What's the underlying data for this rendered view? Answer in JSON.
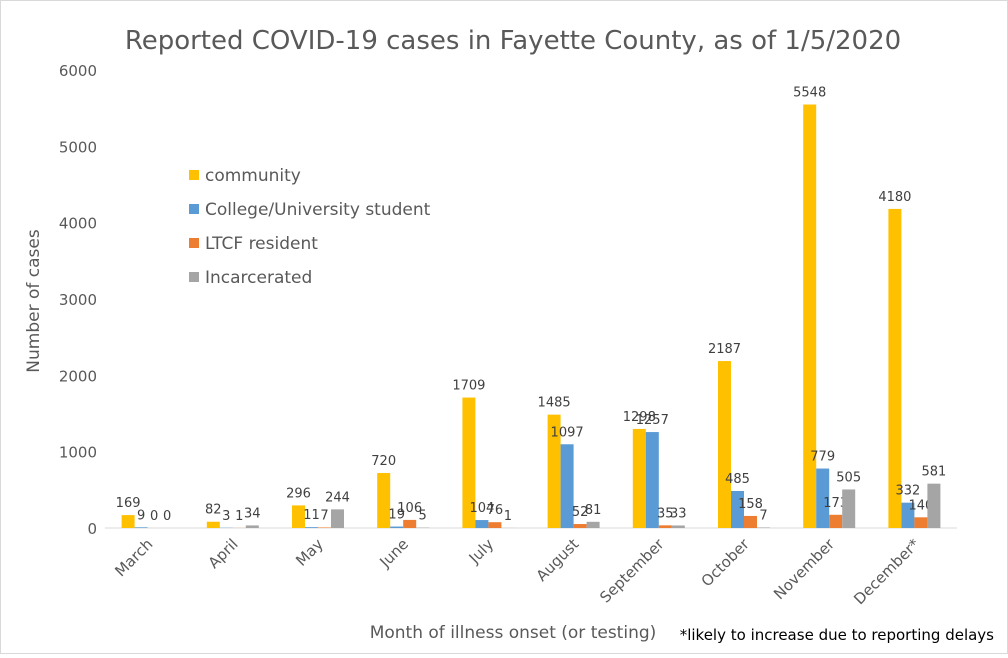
{
  "chart_data": {
    "type": "bar",
    "title": "Reported COVID-19 cases in Fayette County, as of 1/5/2020",
    "xlabel": "Month of illness onset (or testing)",
    "ylabel": "Number of cases",
    "footnote": "*likely  to increase due to reporting delays",
    "ylim": [
      0,
      6000
    ],
    "yticks": [
      0,
      1000,
      2000,
      3000,
      4000,
      5000,
      6000
    ],
    "grid": false,
    "legend_position": "top-left",
    "categories": [
      "March",
      "April",
      "May",
      "June",
      "July",
      "August",
      "September",
      "October",
      "November",
      "December*"
    ],
    "series": [
      {
        "name": "community",
        "color": "#FFC000",
        "values": [
          169,
          82,
          296,
          720,
          1709,
          1485,
          1298,
          2187,
          5548,
          4180
        ]
      },
      {
        "name": "College/University student",
        "color": "#5B9BD5",
        "values": [
          9,
          3,
          11,
          19,
          104,
          1097,
          1257,
          485,
          779,
          332
        ]
      },
      {
        "name": "LTCF resident",
        "color": "#ED7D31",
        "values": [
          0,
          1,
          7,
          106,
          76,
          52,
          35,
          158,
          173,
          140
        ]
      },
      {
        "name": "Incarcerated",
        "color": "#A5A5A5",
        "values": [
          0,
          34,
          244,
          5,
          1,
          81,
          33,
          7,
          505,
          581
        ]
      }
    ]
  }
}
